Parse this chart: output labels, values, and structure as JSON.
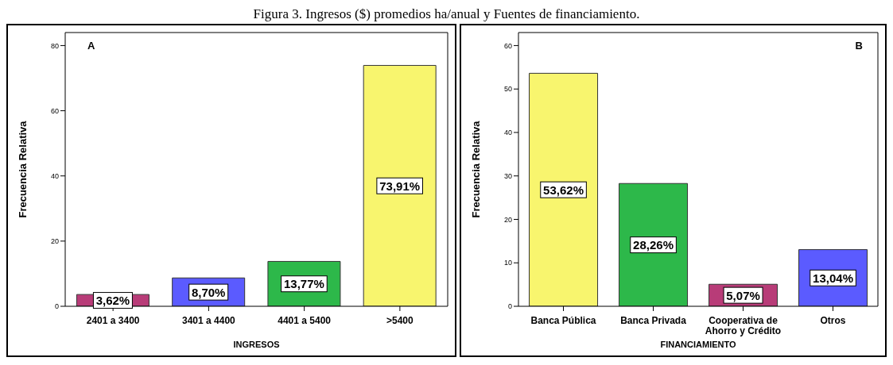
{
  "chart_data": [
    {
      "type": "bar",
      "title": "Figura 3. Ingresos ($) promedios ha/anual y Fuentes de financiamiento.",
      "annotations": [
        "A"
      ],
      "xlabel": "INGRESOS",
      "ylabel": "Frecuencia Relativa",
      "categories": [
        "2401 a 3400",
        "3401 a 4400",
        "4401 a 5400",
        ">5400"
      ],
      "values": [
        3.62,
        8.7,
        13.77,
        73.91
      ],
      "colors": [
        "#b83c78",
        "#5b5bff",
        "#2db84a",
        "#f8f56e"
      ],
      "value_labels": [
        "3,62%",
        "8,70%",
        "13,77%",
        "73,91%"
      ],
      "ylim": [
        0,
        84
      ],
      "yticks": [
        0,
        20,
        40,
        60,
        80
      ],
      "grid": false,
      "legend": false
    },
    {
      "type": "bar",
      "annotations": [
        "B"
      ],
      "xlabel": "FINANCIAMIENTO",
      "ylabel": "Frecuencia Relativa",
      "categories": [
        "Banca Pública",
        "Banca Privada",
        "Cooperativa de Ahorro y Crédito",
        "Otros"
      ],
      "values": [
        53.62,
        28.26,
        5.07,
        13.04
      ],
      "colors": [
        "#f8f56e",
        "#2db84a",
        "#b83c78",
        "#5b5bff"
      ],
      "value_labels": [
        "53,62%",
        "28,26%",
        "5,07%",
        "13,04%"
      ],
      "ylim": [
        0,
        63
      ],
      "yticks": [
        0,
        10,
        20,
        30,
        40,
        50,
        60
      ],
      "grid": false,
      "legend": false
    }
  ]
}
